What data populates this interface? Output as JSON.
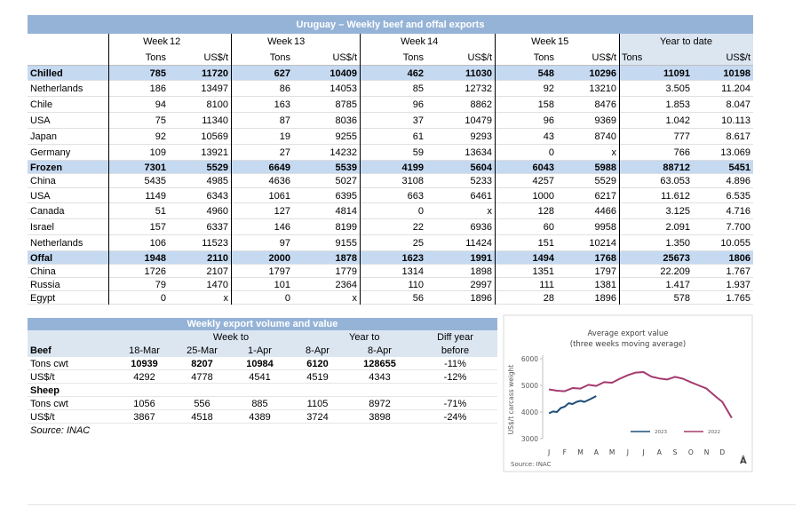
{
  "table": {
    "title": "Uruguay – Weekly beef and offal exports",
    "weeks": [
      {
        "label": "Week",
        "num": "12"
      },
      {
        "label": "Week",
        "num": "13"
      },
      {
        "label": "Week",
        "num": "14"
      },
      {
        "label": "Week",
        "num": "15"
      }
    ],
    "ytd_header": "Year to date",
    "units": [
      "Tons",
      "US$/t",
      "Tons",
      "US$/t",
      "Tons",
      "US$/t",
      "Tons",
      "US$/t",
      "Tons",
      "US$/t"
    ],
    "rows": [
      {
        "section": true,
        "cells": [
          "Chilled",
          "785",
          "11720",
          "627",
          "10409",
          "462",
          "11030",
          "548",
          "10296",
          "11091",
          "10198"
        ]
      },
      {
        "cells": [
          "Netherlands",
          "186",
          "13497",
          "86",
          "14053",
          "85",
          "12732",
          "92",
          "13210",
          "3.505",
          "11.204"
        ]
      },
      {
        "cells": [
          "Chile",
          "94",
          "8100",
          "163",
          "8785",
          "96",
          "8862",
          "158",
          "8476",
          "1.853",
          "8.047"
        ]
      },
      {
        "cells": [
          "USA",
          "75",
          "11340",
          "87",
          "8036",
          "37",
          "10479",
          "96",
          "9369",
          "1.042",
          "10.113"
        ]
      },
      {
        "cells": [
          "Japan",
          "92",
          "10569",
          "19",
          "9255",
          "61",
          "9293",
          "43",
          "8740",
          "777",
          "8.617"
        ]
      },
      {
        "cells": [
          "Germany",
          "109",
          "13921",
          "27",
          "14232",
          "59",
          "13634",
          "0",
          "x",
          "766",
          "13.069"
        ]
      },
      {
        "section": true,
        "cells": [
          "Frozen",
          "7301",
          "5529",
          "6649",
          "5539",
          "4199",
          "5604",
          "6043",
          "5988",
          "88712",
          "5451"
        ]
      },
      {
        "cells": [
          "China",
          "5435",
          "4985",
          "4636",
          "5027",
          "3108",
          "5233",
          "4257",
          "5529",
          "63.053",
          "4.896"
        ]
      },
      {
        "cells": [
          "USA",
          "1149",
          "6343",
          "1061",
          "6395",
          "663",
          "6461",
          "1000",
          "6217",
          "11.612",
          "6.535"
        ]
      },
      {
        "cells": [
          "Canada",
          "51",
          "4960",
          "127",
          "4814",
          "0",
          "x",
          "128",
          "4466",
          "3.125",
          "4.716"
        ]
      },
      {
        "cells": [
          "Israel",
          "157",
          "6337",
          "146",
          "8199",
          "22",
          "6936",
          "60",
          "9958",
          "2.091",
          "7.700"
        ]
      },
      {
        "cells": [
          "Netherlands",
          "106",
          "11523",
          "97",
          "9155",
          "25",
          "11424",
          "151",
          "10214",
          "1.350",
          "10.055"
        ]
      },
      {
        "section": true,
        "cells": [
          "Offal",
          "1948",
          "2110",
          "2000",
          "1878",
          "1623",
          "1991",
          "1494",
          "1768",
          "25673",
          "1806"
        ]
      },
      {
        "cells": [
          "China",
          "1726",
          "2107",
          "1797",
          "1779",
          "1314",
          "1898",
          "1351",
          "1797",
          "22.209",
          "1.767"
        ]
      },
      {
        "cells": [
          "Russia",
          "79",
          "1470",
          "101",
          "2364",
          "110",
          "2997",
          "111",
          "1381",
          "1.417",
          "1.937"
        ]
      },
      {
        "cells": [
          "Egypt",
          "0",
          "x",
          "0",
          "x",
          "56",
          "1896",
          "28",
          "1896",
          "578",
          "1.765"
        ]
      }
    ]
  },
  "weekly_table": {
    "title": "Weekly export volume and value",
    "week_to": "Week to",
    "year_to": "Year to",
    "diff": "Diff year",
    "header": [
      "Beef",
      "18-Mar",
      "25-Mar",
      "1-Apr",
      "8-Apr",
      "8-Apr",
      "before"
    ],
    "rows": [
      {
        "bold": true,
        "cells": [
          "Tons cwt",
          "10939",
          "8207",
          "10984",
          "6120",
          "128655",
          "-11%"
        ]
      },
      {
        "cells": [
          "US$/t",
          "4292",
          "4778",
          "4541",
          "4519",
          "4343",
          "-12%"
        ]
      },
      {
        "section": true,
        "cells": [
          "Sheep"
        ]
      },
      {
        "cells": [
          "Tons cwt",
          "1056",
          "556",
          "885",
          "1105",
          "8972",
          "-71%"
        ]
      },
      {
        "cells": [
          "US$/t",
          "3867",
          "4518",
          "4389",
          "3724",
          "3898",
          "-24%"
        ]
      }
    ],
    "source": "Source: INAC"
  },
  "chart_data": {
    "type": "line",
    "title": "Average export value",
    "subtitle": "(three weeks moving average)",
    "ylabel": "US$/t carcass weight",
    "source": "Source: INAC",
    "corner_mark": "Å",
    "xlim": [
      -0.4,
      12
    ],
    "ylim": [
      3000,
      6000
    ],
    "yticks": [
      3000,
      4000,
      5000,
      6000
    ],
    "xticks": [
      {
        "value": 0,
        "label": "J"
      },
      {
        "value": 1,
        "label": "F"
      },
      {
        "value": 2,
        "label": "M"
      },
      {
        "value": 3,
        "label": "A"
      },
      {
        "value": 4,
        "label": "M"
      },
      {
        "value": 5,
        "label": "J"
      },
      {
        "value": 6,
        "label": "J"
      },
      {
        "value": 7,
        "label": "A"
      },
      {
        "value": 8,
        "label": "S"
      },
      {
        "value": 9,
        "label": "O"
      },
      {
        "value": 10,
        "label": "N"
      },
      {
        "value": 11,
        "label": "D"
      }
    ],
    "series": [
      {
        "name": "2023",
        "color": "#1f4e79",
        "x": [
          0,
          0.25,
          0.5,
          0.75,
          1,
          1.25,
          1.5,
          1.75,
          2,
          2.25,
          2.5,
          2.75,
          3
        ],
        "values": [
          3950,
          4020,
          4000,
          4150,
          4200,
          4330,
          4300,
          4380,
          4420,
          4380,
          4450,
          4520,
          4600
        ]
      },
      {
        "name": "2022",
        "color": "#a5396f",
        "x": [
          0,
          0.5,
          1,
          1.5,
          2,
          2.5,
          3,
          3.5,
          4,
          4.5,
          5,
          5.5,
          6,
          6.5,
          7,
          7.5,
          8,
          8.5,
          9,
          9.5,
          10,
          10.5,
          11,
          11.6
        ],
        "values": [
          4850,
          4800,
          4780,
          4900,
          4880,
          5020,
          4980,
          5120,
          5100,
          5250,
          5380,
          5480,
          5500,
          5330,
          5260,
          5220,
          5320,
          5250,
          5120,
          5000,
          4880,
          4620,
          4380,
          3780
        ]
      }
    ]
  }
}
